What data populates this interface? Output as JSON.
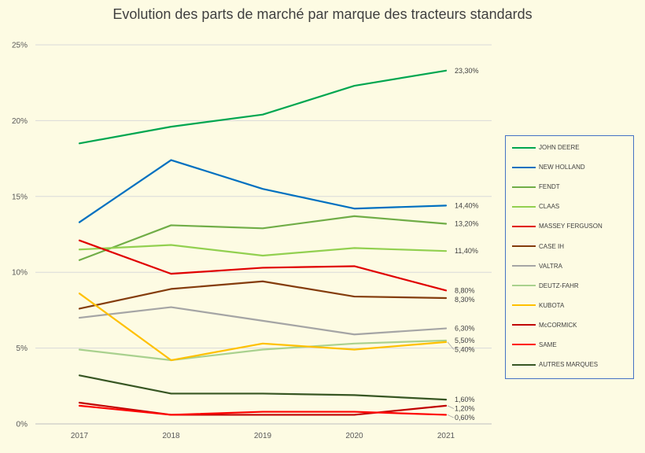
{
  "chart_data": {
    "type": "line",
    "title": "Evolution des parts de marché par marque des tracteurs standards",
    "xlabel": "",
    "ylabel": "",
    "categories": [
      "2017",
      "2018",
      "2019",
      "2020",
      "2021"
    ],
    "ylim": [
      0,
      25
    ],
    "yticks": [
      0,
      5,
      10,
      15,
      20,
      25
    ],
    "ytick_labels": [
      "0%",
      "5%",
      "10%",
      "15%",
      "20%",
      "25%"
    ],
    "grid": "horizontal",
    "legend_position": "right",
    "series": [
      {
        "name": "JOHN DEERE",
        "color": "#00a650",
        "values": [
          18.5,
          19.6,
          20.4,
          22.3,
          23.3
        ],
        "end_label": "23,30%"
      },
      {
        "name": "NEW HOLLAND",
        "color": "#0070c0",
        "values": [
          13.3,
          17.4,
          15.5,
          14.2,
          14.4
        ],
        "end_label": "14,40%"
      },
      {
        "name": "FENDT",
        "color": "#70ad47",
        "values": [
          10.8,
          13.1,
          12.9,
          13.7,
          13.2
        ],
        "end_label": "13,20%"
      },
      {
        "name": "CLAAS",
        "color": "#92d050",
        "values": [
          11.5,
          11.8,
          11.1,
          11.6,
          11.4
        ],
        "end_label": "11,40%"
      },
      {
        "name": "MASSEY FERGUSON",
        "color": "#e00000",
        "values": [
          12.1,
          9.9,
          10.3,
          10.4,
          8.8
        ],
        "end_label": "8,80%"
      },
      {
        "name": "CASE IH",
        "color": "#843c0c",
        "values": [
          7.6,
          8.9,
          9.4,
          8.4,
          8.3
        ],
        "end_label": "8,30%"
      },
      {
        "name": "VALTRA",
        "color": "#a5a5a5",
        "values": [
          7.0,
          7.7,
          6.8,
          5.9,
          6.3
        ],
        "end_label": "6,30%"
      },
      {
        "name": "DEUTZ-FAHR",
        "color": "#a9d18e",
        "values": [
          4.9,
          4.2,
          4.9,
          5.3,
          5.5
        ],
        "end_label": "5,50%"
      },
      {
        "name": "KUBOTA",
        "color": "#ffc000",
        "values": [
          8.6,
          4.2,
          5.3,
          4.9,
          5.4
        ],
        "end_label": "5,40%"
      },
      {
        "name": "McCORMICK",
        "color": "#c00000",
        "values": [
          1.4,
          0.6,
          0.6,
          0.6,
          1.2
        ],
        "end_label": "1,20%"
      },
      {
        "name": "SAME",
        "color": "#ff0000",
        "values": [
          1.2,
          0.6,
          0.8,
          0.8,
          0.6
        ],
        "end_label": "0,60%"
      },
      {
        "name": "AUTRES MARQUES",
        "color": "#375623",
        "values": [
          3.2,
          2.0,
          2.0,
          1.9,
          1.6
        ],
        "end_label": "1,60%"
      }
    ]
  }
}
